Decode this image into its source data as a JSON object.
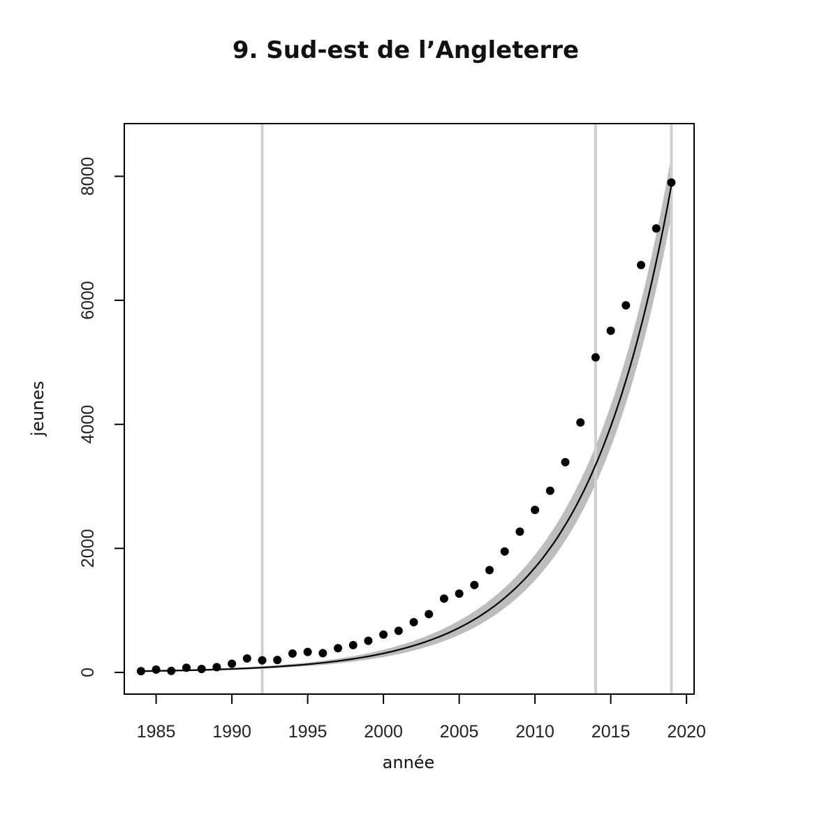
{
  "chart_data": {
    "type": "scatter",
    "title": "9. Sud-est de l’Angleterre",
    "xlabel": "année",
    "ylabel": "jeunes",
    "xlim": [
      1982.9,
      2020.5
    ],
    "ylim": [
      -350,
      8850
    ],
    "x_ticks": [
      1985,
      1990,
      1995,
      2000,
      2005,
      2010,
      2015,
      2020
    ],
    "y_ticks": [
      0,
      2000,
      4000,
      6000,
      8000
    ],
    "x_tick_labels": [
      "1985",
      "1990",
      "1995",
      "2000",
      "2005",
      "2010",
      "2015",
      "2020"
    ],
    "y_tick_labels": [
      "0",
      "2000",
      "4000",
      "6000",
      "8000"
    ],
    "grid": false,
    "vertical_reference_lines": [
      1992,
      2014,
      2019
    ],
    "points": {
      "x": [
        1984,
        1985,
        1986,
        1987,
        1988,
        1989,
        1990,
        1991,
        1992,
        1993,
        1994,
        1995,
        1996,
        1997,
        1998,
        1999,
        2000,
        2001,
        2002,
        2003,
        2004,
        2005,
        2006,
        2007,
        2008,
        2009,
        2010,
        2011,
        2012,
        2013,
        2014,
        2015,
        2016,
        2017,
        2018,
        2019
      ],
      "y": [
        20,
        45,
        25,
        75,
        55,
        85,
        140,
        225,
        195,
        200,
        305,
        330,
        310,
        390,
        440,
        510,
        610,
        670,
        810,
        940,
        1190,
        1270,
        1410,
        1650,
        1950,
        2270,
        2620,
        2930,
        3390,
        4030,
        5080,
        5510,
        5920,
        6570,
        7160,
        7900
      ]
    },
    "fit": {
      "x_start": 1984,
      "x_end": 2019,
      "y_start": 20,
      "y_end": 7850,
      "band_halfwidth_start": 15,
      "band_halfwidth_end": 480
    },
    "colors": {
      "points": "#000000",
      "fit_line": "#000000",
      "confidence_band": "#bdbdbd",
      "reference_lines": "#d0d0d0",
      "axes": "#000000"
    }
  }
}
